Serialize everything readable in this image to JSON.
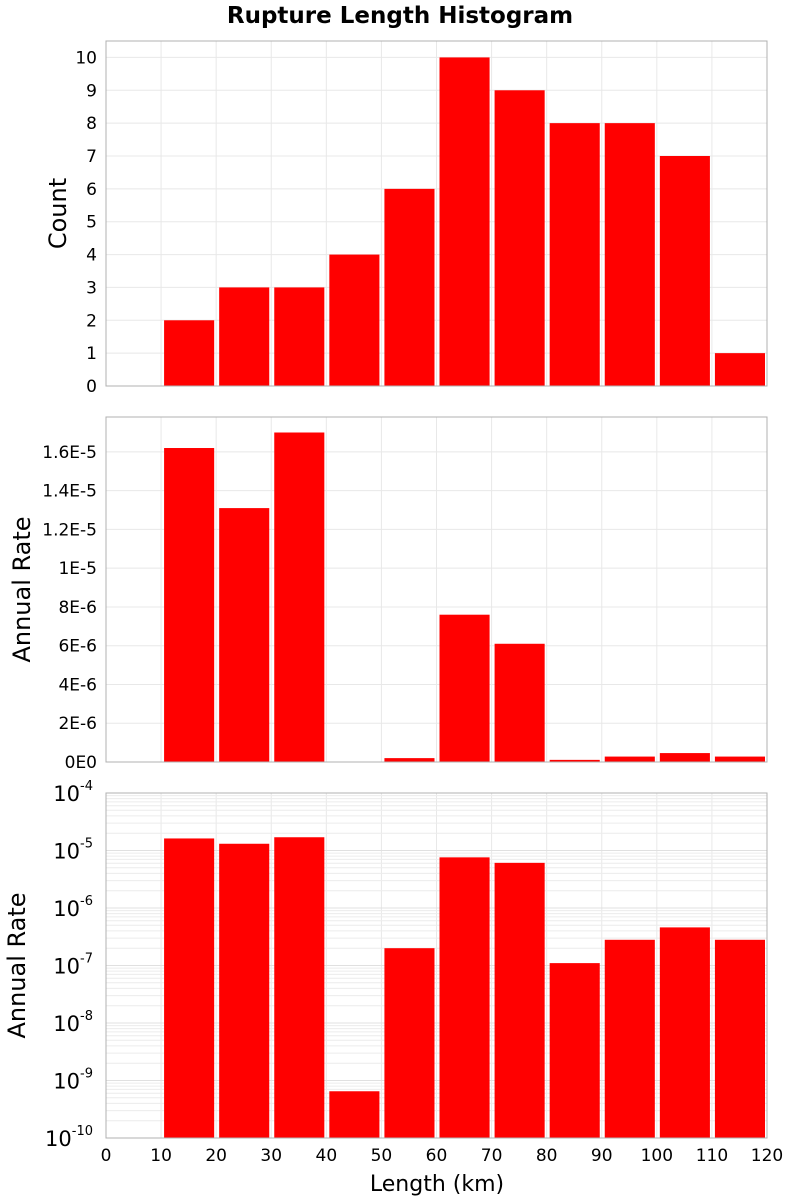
{
  "chart_data": {
    "type": "bar",
    "title": "Rupture Length Histogram",
    "xlabel": "Length (km)",
    "xlim": [
      0,
      120
    ],
    "xticks": [
      "0",
      "10",
      "20",
      "30",
      "40",
      "50",
      "60",
      "70",
      "80",
      "90",
      "100",
      "110",
      "120"
    ],
    "bin_width": 10,
    "bin_starts": [
      10,
      20,
      30,
      40,
      50,
      60,
      70,
      80,
      90,
      100,
      110
    ],
    "grid": true,
    "bar_color": "#ff0000",
    "panels": [
      {
        "ylabel": "Count",
        "scale": "linear",
        "ylim": [
          0,
          10.5
        ],
        "ytick_values": [
          0,
          1,
          2,
          3,
          4,
          5,
          6,
          7,
          8,
          9,
          10
        ],
        "ytick_labels": [
          "0",
          "1",
          "2",
          "3",
          "4",
          "5",
          "6",
          "7",
          "8",
          "9",
          "10"
        ],
        "values": [
          2,
          3,
          3,
          4,
          6,
          10,
          9,
          8,
          8,
          7,
          1
        ]
      },
      {
        "ylabel": "Annual Rate",
        "scale": "linear",
        "ylim": [
          0,
          1.78e-05
        ],
        "ytick_values": [
          0,
          2e-06,
          4e-06,
          6e-06,
          8e-06,
          1e-05,
          1.2e-05,
          1.4e-05,
          1.6e-05
        ],
        "ytick_labels": [
          "0E0",
          "2E-6",
          "4E-6",
          "6E-6",
          "8E-6",
          "1E-5",
          "1.2E-5",
          "1.4E-5",
          "1.6E-5"
        ],
        "values": [
          1.62e-05,
          1.31e-05,
          1.7e-05,
          6.5e-10,
          2e-07,
          7.6e-06,
          6.1e-06,
          1.1e-07,
          2.8e-07,
          4.6e-07,
          2.8e-07
        ]
      },
      {
        "ylabel": "Annual Rate",
        "scale": "log",
        "ylim": [
          1e-10,
          0.0001
        ],
        "ytick_values": [
          1e-10,
          1e-09,
          1e-08,
          1e-07,
          1e-06,
          1e-05,
          0.0001
        ],
        "ytick_base": "10",
        "ytick_exponents": [
          "-10",
          "-9",
          "-8",
          "-7",
          "-6",
          "-5",
          "-4"
        ],
        "values": [
          1.62e-05,
          1.31e-05,
          1.7e-05,
          6.5e-10,
          2e-07,
          7.6e-06,
          6.1e-06,
          1.1e-07,
          2.8e-07,
          4.6e-07,
          2.8e-07
        ]
      }
    ]
  }
}
